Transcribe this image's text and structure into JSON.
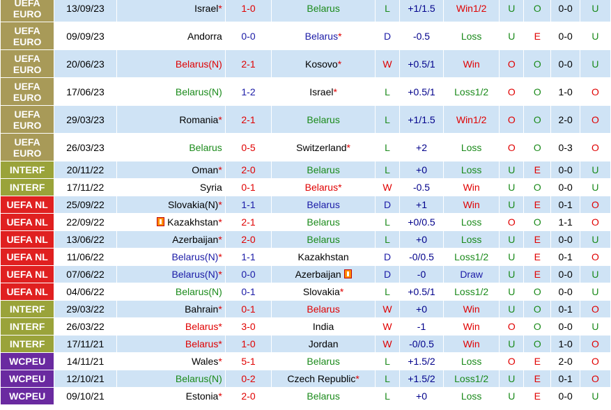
{
  "colors": {
    "UEFA EURO": "#a89a58",
    "INTERF": "#9aa33a",
    "UEFA NL": "#e02020",
    "WCPEU": "#6a2aa0"
  },
  "rows": [
    {
      "comp": "UEFA EURO",
      "date": "13/09/23",
      "home": "Israel",
      "home_star": true,
      "home_color": "black",
      "home_flag": false,
      "score": "1-0",
      "score_color": "red",
      "away": "Belarus",
      "away_star": false,
      "away_color": "green",
      "away_flag": false,
      "wl": "L",
      "wl_color": "green",
      "hc": "+1/1.5",
      "res": "Win1/2",
      "res_color": "red",
      "ou": "U",
      "ou_color": "green",
      "ht": "O",
      "ht_color": "green",
      "hts": "0-0",
      "last": "U",
      "last_color": "green"
    },
    {
      "comp": "UEFA EURO",
      "date": "09/09/23",
      "home": "Andorra",
      "home_star": false,
      "home_color": "black",
      "home_flag": false,
      "score": "0-0",
      "score_color": "blue",
      "away": "Belarus",
      "away_star": true,
      "away_color": "blue",
      "away_flag": false,
      "wl": "D",
      "wl_color": "blue",
      "hc": "-0.5",
      "res": "Loss",
      "res_color": "green",
      "ou": "U",
      "ou_color": "green",
      "ht": "E",
      "ht_color": "red",
      "hts": "0-0",
      "last": "U",
      "last_color": "green"
    },
    {
      "comp": "UEFA EURO",
      "date": "20/06/23",
      "home": "Belarus(N)",
      "home_star": false,
      "home_color": "red",
      "home_flag": false,
      "score": "2-1",
      "score_color": "red",
      "away": "Kosovo",
      "away_star": true,
      "away_color": "black",
      "away_flag": false,
      "wl": "W",
      "wl_color": "red",
      "hc": "+0.5/1",
      "res": "Win",
      "res_color": "red",
      "ou": "O",
      "ou_color": "red",
      "ht": "O",
      "ht_color": "green",
      "hts": "0-0",
      "last": "U",
      "last_color": "green"
    },
    {
      "comp": "UEFA EURO",
      "date": "17/06/23",
      "home": "Belarus(N)",
      "home_star": false,
      "home_color": "green",
      "home_flag": false,
      "score": "1-2",
      "score_color": "blue",
      "away": "Israel",
      "away_star": true,
      "away_color": "black",
      "away_flag": false,
      "wl": "L",
      "wl_color": "green",
      "hc": "+0.5/1",
      "res": "Loss1/2",
      "res_color": "green",
      "ou": "O",
      "ou_color": "red",
      "ht": "O",
      "ht_color": "green",
      "hts": "1-0",
      "last": "O",
      "last_color": "red"
    },
    {
      "comp": "UEFA EURO",
      "date": "29/03/23",
      "home": "Romania",
      "home_star": true,
      "home_color": "black",
      "home_flag": false,
      "score": "2-1",
      "score_color": "red",
      "away": "Belarus",
      "away_star": false,
      "away_color": "green",
      "away_flag": false,
      "wl": "L",
      "wl_color": "green",
      "hc": "+1/1.5",
      "res": "Win1/2",
      "res_color": "red",
      "ou": "O",
      "ou_color": "red",
      "ht": "O",
      "ht_color": "green",
      "hts": "2-0",
      "last": "O",
      "last_color": "red"
    },
    {
      "comp": "UEFA EURO",
      "date": "26/03/23",
      "home": "Belarus",
      "home_star": false,
      "home_color": "green",
      "home_flag": false,
      "score": "0-5",
      "score_color": "red",
      "away": "Switzerland",
      "away_star": true,
      "away_color": "black",
      "away_flag": false,
      "wl": "L",
      "wl_color": "green",
      "hc": "+2",
      "res": "Loss",
      "res_color": "green",
      "ou": "O",
      "ou_color": "red",
      "ht": "O",
      "ht_color": "green",
      "hts": "0-3",
      "last": "O",
      "last_color": "red"
    },
    {
      "comp": "INTERF",
      "date": "20/11/22",
      "home": "Oman",
      "home_star": true,
      "home_color": "black",
      "home_flag": false,
      "score": "2-0",
      "score_color": "red",
      "away": "Belarus",
      "away_star": false,
      "away_color": "green",
      "away_flag": false,
      "wl": "L",
      "wl_color": "green",
      "hc": "+0",
      "res": "Loss",
      "res_color": "green",
      "ou": "U",
      "ou_color": "green",
      "ht": "E",
      "ht_color": "red",
      "hts": "0-0",
      "last": "U",
      "last_color": "green"
    },
    {
      "comp": "INTERF",
      "date": "17/11/22",
      "home": "Syria",
      "home_star": false,
      "home_color": "black",
      "home_flag": false,
      "score": "0-1",
      "score_color": "red",
      "away": "Belarus",
      "away_star": true,
      "away_color": "red",
      "away_flag": false,
      "wl": "W",
      "wl_color": "red",
      "hc": "-0.5",
      "res": "Win",
      "res_color": "red",
      "ou": "U",
      "ou_color": "green",
      "ht": "O",
      "ht_color": "green",
      "hts": "0-0",
      "last": "U",
      "last_color": "green"
    },
    {
      "comp": "UEFA NL",
      "date": "25/09/22",
      "home": "Slovakia(N)",
      "home_star": true,
      "home_color": "black",
      "home_flag": false,
      "score": "1-1",
      "score_color": "blue",
      "away": "Belarus",
      "away_star": false,
      "away_color": "blue",
      "away_flag": false,
      "wl": "D",
      "wl_color": "blue",
      "hc": "+1",
      "res": "Win",
      "res_color": "red",
      "ou": "U",
      "ou_color": "green",
      "ht": "E",
      "ht_color": "red",
      "hts": "0-1",
      "last": "O",
      "last_color": "red"
    },
    {
      "comp": "UEFA NL",
      "date": "22/09/22",
      "home": "Kazakhstan",
      "home_star": true,
      "home_color": "black",
      "home_flag": true,
      "score": "2-1",
      "score_color": "red",
      "away": "Belarus",
      "away_star": false,
      "away_color": "green",
      "away_flag": false,
      "wl": "L",
      "wl_color": "green",
      "hc": "+0/0.5",
      "res": "Loss",
      "res_color": "green",
      "ou": "O",
      "ou_color": "red",
      "ht": "O",
      "ht_color": "green",
      "hts": "1-1",
      "last": "O",
      "last_color": "red"
    },
    {
      "comp": "UEFA NL",
      "date": "13/06/22",
      "home": "Azerbaijan",
      "home_star": true,
      "home_color": "black",
      "home_flag": false,
      "score": "2-0",
      "score_color": "red",
      "away": "Belarus",
      "away_star": false,
      "away_color": "green",
      "away_flag": false,
      "wl": "L",
      "wl_color": "green",
      "hc": "+0",
      "res": "Loss",
      "res_color": "green",
      "ou": "U",
      "ou_color": "green",
      "ht": "E",
      "ht_color": "red",
      "hts": "0-0",
      "last": "U",
      "last_color": "green"
    },
    {
      "comp": "UEFA NL",
      "date": "11/06/22",
      "home": "Belarus(N)",
      "home_star": true,
      "home_color": "blue",
      "home_flag": false,
      "score": "1-1",
      "score_color": "blue",
      "away": "Kazakhstan",
      "away_star": false,
      "away_color": "black",
      "away_flag": false,
      "wl": "D",
      "wl_color": "blue",
      "hc": "-0/0.5",
      "res": "Loss1/2",
      "res_color": "green",
      "ou": "U",
      "ou_color": "green",
      "ht": "E",
      "ht_color": "red",
      "hts": "0-1",
      "last": "O",
      "last_color": "red"
    },
    {
      "comp": "UEFA NL",
      "date": "07/06/22",
      "home": "Belarus(N)",
      "home_star": true,
      "home_color": "blue",
      "home_flag": false,
      "score": "0-0",
      "score_color": "blue",
      "away": "Azerbaijan",
      "away_star": false,
      "away_color": "black",
      "away_flag": true,
      "wl": "D",
      "wl_color": "blue",
      "hc": "-0",
      "res": "Draw",
      "res_color": "blue",
      "ou": "U",
      "ou_color": "green",
      "ht": "E",
      "ht_color": "red",
      "hts": "0-0",
      "last": "U",
      "last_color": "green"
    },
    {
      "comp": "UEFA NL",
      "date": "04/06/22",
      "home": "Belarus(N)",
      "home_star": false,
      "home_color": "green",
      "home_flag": false,
      "score": "0-1",
      "score_color": "blue",
      "away": "Slovakia",
      "away_star": true,
      "away_color": "black",
      "away_flag": false,
      "wl": "L",
      "wl_color": "green",
      "hc": "+0.5/1",
      "res": "Loss1/2",
      "res_color": "green",
      "ou": "U",
      "ou_color": "green",
      "ht": "O",
      "ht_color": "green",
      "hts": "0-0",
      "last": "U",
      "last_color": "green"
    },
    {
      "comp": "INTERF",
      "date": "29/03/22",
      "home": "Bahrain",
      "home_star": true,
      "home_color": "black",
      "home_flag": false,
      "score": "0-1",
      "score_color": "red",
      "away": "Belarus",
      "away_star": false,
      "away_color": "red",
      "away_flag": false,
      "wl": "W",
      "wl_color": "red",
      "hc": "+0",
      "res": "Win",
      "res_color": "red",
      "ou": "U",
      "ou_color": "green",
      "ht": "O",
      "ht_color": "green",
      "hts": "0-1",
      "last": "O",
      "last_color": "red"
    },
    {
      "comp": "INTERF",
      "date": "26/03/22",
      "home": "Belarus",
      "home_star": true,
      "home_color": "red",
      "home_flag": false,
      "score": "3-0",
      "score_color": "red",
      "away": "India",
      "away_star": false,
      "away_color": "black",
      "away_flag": false,
      "wl": "W",
      "wl_color": "red",
      "hc": "-1",
      "res": "Win",
      "res_color": "red",
      "ou": "O",
      "ou_color": "red",
      "ht": "O",
      "ht_color": "green",
      "hts": "0-0",
      "last": "U",
      "last_color": "green"
    },
    {
      "comp": "INTERF",
      "date": "17/11/21",
      "home": "Belarus",
      "home_star": true,
      "home_color": "red",
      "home_flag": false,
      "score": "1-0",
      "score_color": "red",
      "away": "Jordan",
      "away_star": false,
      "away_color": "black",
      "away_flag": false,
      "wl": "W",
      "wl_color": "red",
      "hc": "-0/0.5",
      "res": "Win",
      "res_color": "red",
      "ou": "U",
      "ou_color": "green",
      "ht": "O",
      "ht_color": "green",
      "hts": "1-0",
      "last": "O",
      "last_color": "red"
    },
    {
      "comp": "WCPEU",
      "date": "14/11/21",
      "home": "Wales",
      "home_star": true,
      "home_color": "black",
      "home_flag": false,
      "score": "5-1",
      "score_color": "red",
      "away": "Belarus",
      "away_star": false,
      "away_color": "green",
      "away_flag": false,
      "wl": "L",
      "wl_color": "green",
      "hc": "+1.5/2",
      "res": "Loss",
      "res_color": "green",
      "ou": "O",
      "ou_color": "red",
      "ht": "E",
      "ht_color": "red",
      "hts": "2-0",
      "last": "O",
      "last_color": "red"
    },
    {
      "comp": "WCPEU",
      "date": "12/10/21",
      "home": "Belarus(N)",
      "home_star": false,
      "home_color": "green",
      "home_flag": false,
      "score": "0-2",
      "score_color": "red",
      "away": "Czech Republic",
      "away_star": true,
      "away_color": "black",
      "away_flag": false,
      "wl": "L",
      "wl_color": "green",
      "hc": "+1.5/2",
      "res": "Loss1/2",
      "res_color": "green",
      "ou": "U",
      "ou_color": "green",
      "ht": "E",
      "ht_color": "red",
      "hts": "0-1",
      "last": "O",
      "last_color": "red"
    },
    {
      "comp": "WCPEU",
      "date": "09/10/21",
      "home": "Estonia",
      "home_star": true,
      "home_color": "black",
      "home_flag": false,
      "score": "2-0",
      "score_color": "red",
      "away": "Belarus",
      "away_star": false,
      "away_color": "green",
      "away_flag": false,
      "wl": "L",
      "wl_color": "green",
      "hc": "+0",
      "res": "Loss",
      "res_color": "green",
      "ou": "U",
      "ou_color": "green",
      "ht": "E",
      "ht_color": "red",
      "hts": "0-0",
      "last": "U",
      "last_color": "green"
    }
  ]
}
